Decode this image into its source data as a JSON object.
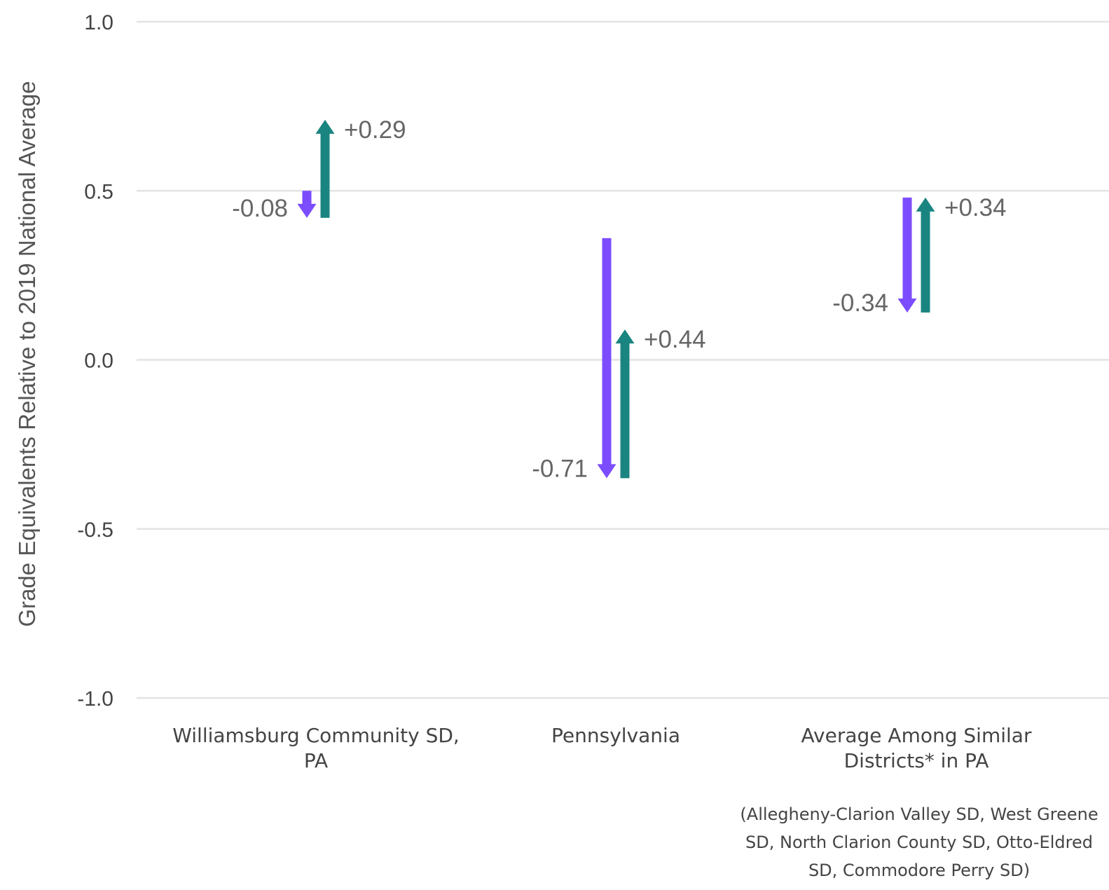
{
  "chart_data": {
    "type": "arrow",
    "ylabel": "Grade Equivalents Relative to 2019 National Average",
    "ylim": [
      -1.0,
      1.0
    ],
    "yticks": [
      1.0,
      0.5,
      0.0,
      -0.5,
      -1.0
    ],
    "ytick_labels": [
      "1.0",
      "0.5",
      "0.0",
      "-0.5",
      "-1.0"
    ],
    "grid": true,
    "categories": [
      {
        "lines": [
          "Williamsburg Community SD,",
          "PA"
        ]
      },
      {
        "lines": [
          "Pennsylvania"
        ]
      },
      {
        "lines": [
          "Average Among Similar",
          "Districts* in PA"
        ]
      }
    ],
    "note_lines": [
      "(Allegheny-Clarion Valley SD, West Greene",
      "SD, North Clarion County SD, Otto-Eldred",
      "SD, Commodore Perry SD)"
    ],
    "series": [
      {
        "color": "#7c4dff",
        "direction": "down",
        "start": [
          0.5,
          0.36,
          0.48
        ],
        "end": [
          0.42,
          -0.35,
          0.14
        ],
        "labels": [
          "-0.08",
          "-0.71",
          "-0.34"
        ]
      },
      {
        "color": "#1a8580",
        "direction": "up",
        "start": [
          0.42,
          -0.35,
          0.14
        ],
        "end": [
          0.71,
          0.09,
          0.48
        ],
        "labels": [
          "+0.29",
          "+0.44",
          "+0.34"
        ]
      }
    ],
    "colors": {
      "grid": "#e3e3e3",
      "axis_text": "#444444"
    }
  }
}
